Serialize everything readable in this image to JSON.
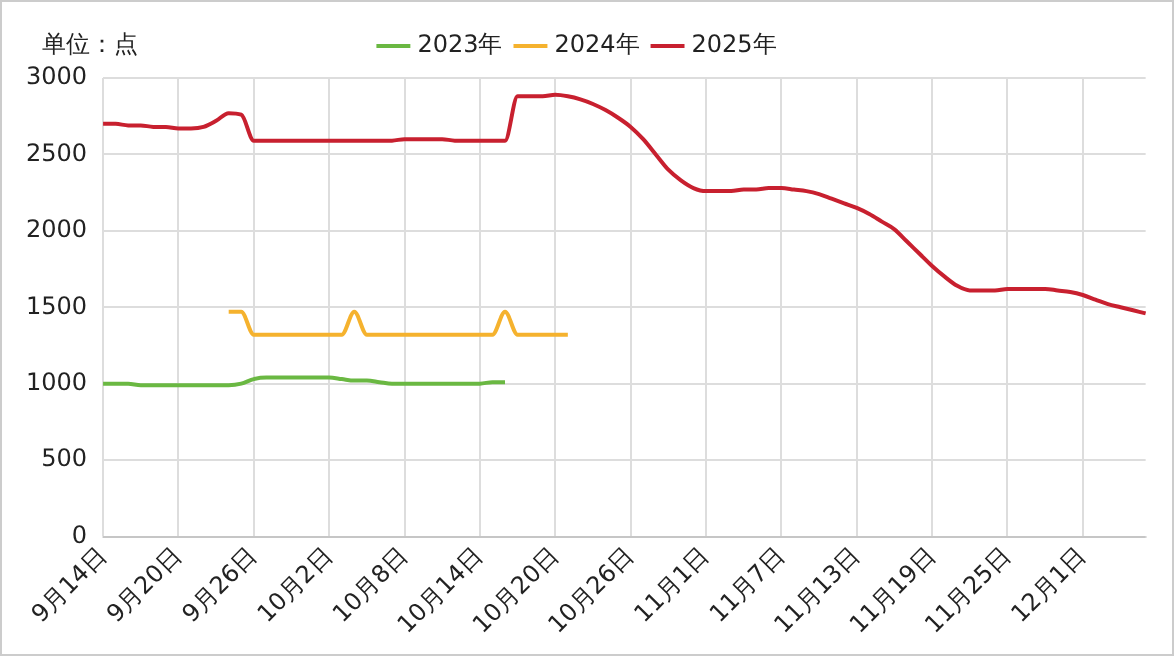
{
  "chart_data": {
    "type": "line",
    "annotations": [
      "单位：点"
    ],
    "categories": [
      "9月14日",
      null,
      null,
      null,
      null,
      null,
      "9月20日",
      null,
      null,
      null,
      null,
      null,
      "9月26日",
      null,
      null,
      null,
      null,
      null,
      "10月2日",
      null,
      null,
      null,
      null,
      null,
      "10月8日",
      null,
      null,
      null,
      null,
      null,
      "10月14日",
      null,
      null,
      null,
      null,
      null,
      "10月20日",
      null,
      null,
      null,
      null,
      null,
      "10月26日",
      null,
      null,
      null,
      null,
      null,
      "11月1日",
      null,
      null,
      null,
      null,
      null,
      "11月7日",
      null,
      null,
      null,
      null,
      null,
      "11月13日",
      null,
      null,
      null,
      null,
      null,
      "11月19日",
      null,
      null,
      null,
      null,
      null,
      "11月25日",
      null,
      null,
      null,
      null,
      null,
      "12月1日",
      null,
      null,
      null,
      null,
      null
    ],
    "series": [
      {
        "name": "2023年",
        "color": "#6ab842",
        "values": [
          1000,
          1000,
          1000,
          990,
          990,
          990,
          990,
          990,
          990,
          990,
          990,
          1000,
          1030,
          1040,
          1040,
          1040,
          1040,
          1040,
          1040,
          1030,
          1020,
          1020,
          1010,
          1000,
          1000,
          1000,
          1000,
          1000,
          1000,
          1000,
          1000,
          1010,
          1010,
          null,
          null,
          null,
          null,
          null,
          null,
          null,
          null,
          null,
          null,
          null,
          null,
          null,
          null,
          null,
          null,
          null,
          null,
          null,
          null,
          null,
          null,
          null,
          null,
          null,
          null,
          null,
          null,
          null,
          null,
          null,
          null,
          null,
          null,
          null,
          null,
          null,
          null,
          null,
          null,
          null,
          null,
          null,
          null,
          null,
          null,
          null,
          null,
          null,
          null,
          null
        ]
      },
      {
        "name": "2024年",
        "color": "#f5b22e",
        "values": [
          null,
          null,
          null,
          null,
          null,
          null,
          null,
          null,
          null,
          null,
          1470,
          1470,
          1320,
          1320,
          1320,
          1320,
          1320,
          1320,
          1320,
          1320,
          1470,
          1320,
          1320,
          1320,
          1320,
          1320,
          1320,
          1320,
          1320,
          1320,
          1320,
          1320,
          1470,
          1320,
          1320,
          1320,
          1320,
          1320,
          null,
          null,
          null,
          null,
          null,
          null,
          null,
          null,
          null,
          null,
          null,
          null,
          null,
          null,
          null,
          null,
          null,
          null,
          null,
          null,
          null,
          null,
          null,
          null,
          null,
          null,
          null,
          null,
          null,
          null,
          null,
          null,
          null,
          null,
          null,
          null,
          null,
          null,
          null,
          null,
          null,
          null,
          null,
          null,
          null,
          null
        ]
      },
      {
        "name": "2025年",
        "color": "#c8202f",
        "values": [
          2700,
          2700,
          2690,
          2690,
          2680,
          2680,
          2670,
          2670,
          2680,
          2720,
          2770,
          2760,
          2590,
          2590,
          2590,
          2590,
          2590,
          2590,
          2590,
          2590,
          2590,
          2590,
          2590,
          2590,
          2600,
          2600,
          2600,
          2600,
          2590,
          2590,
          2590,
          2590,
          2590,
          2880,
          2880,
          2880,
          2890,
          2880,
          2860,
          2830,
          2790,
          2740,
          2680,
          2600,
          2500,
          2400,
          2330,
          2280,
          2260,
          2260,
          2260,
          2270,
          2270,
          2280,
          2280,
          2270,
          2260,
          2240,
          2210,
          2180,
          2150,
          2110,
          2060,
          2010,
          1930,
          1850,
          1770,
          1700,
          1640,
          1610,
          1610,
          1610,
          1620,
          1620,
          1620,
          1620,
          1610,
          1600,
          1580,
          1550,
          1520,
          1500,
          1480,
          1460
        ]
      }
    ],
    "ylim": [
      0,
      3000
    ],
    "yticks": [
      0,
      500,
      1000,
      1500,
      2000,
      2500,
      3000
    ],
    "grid": true,
    "legend": "top",
    "marker": "none",
    "line_style": "solid"
  }
}
